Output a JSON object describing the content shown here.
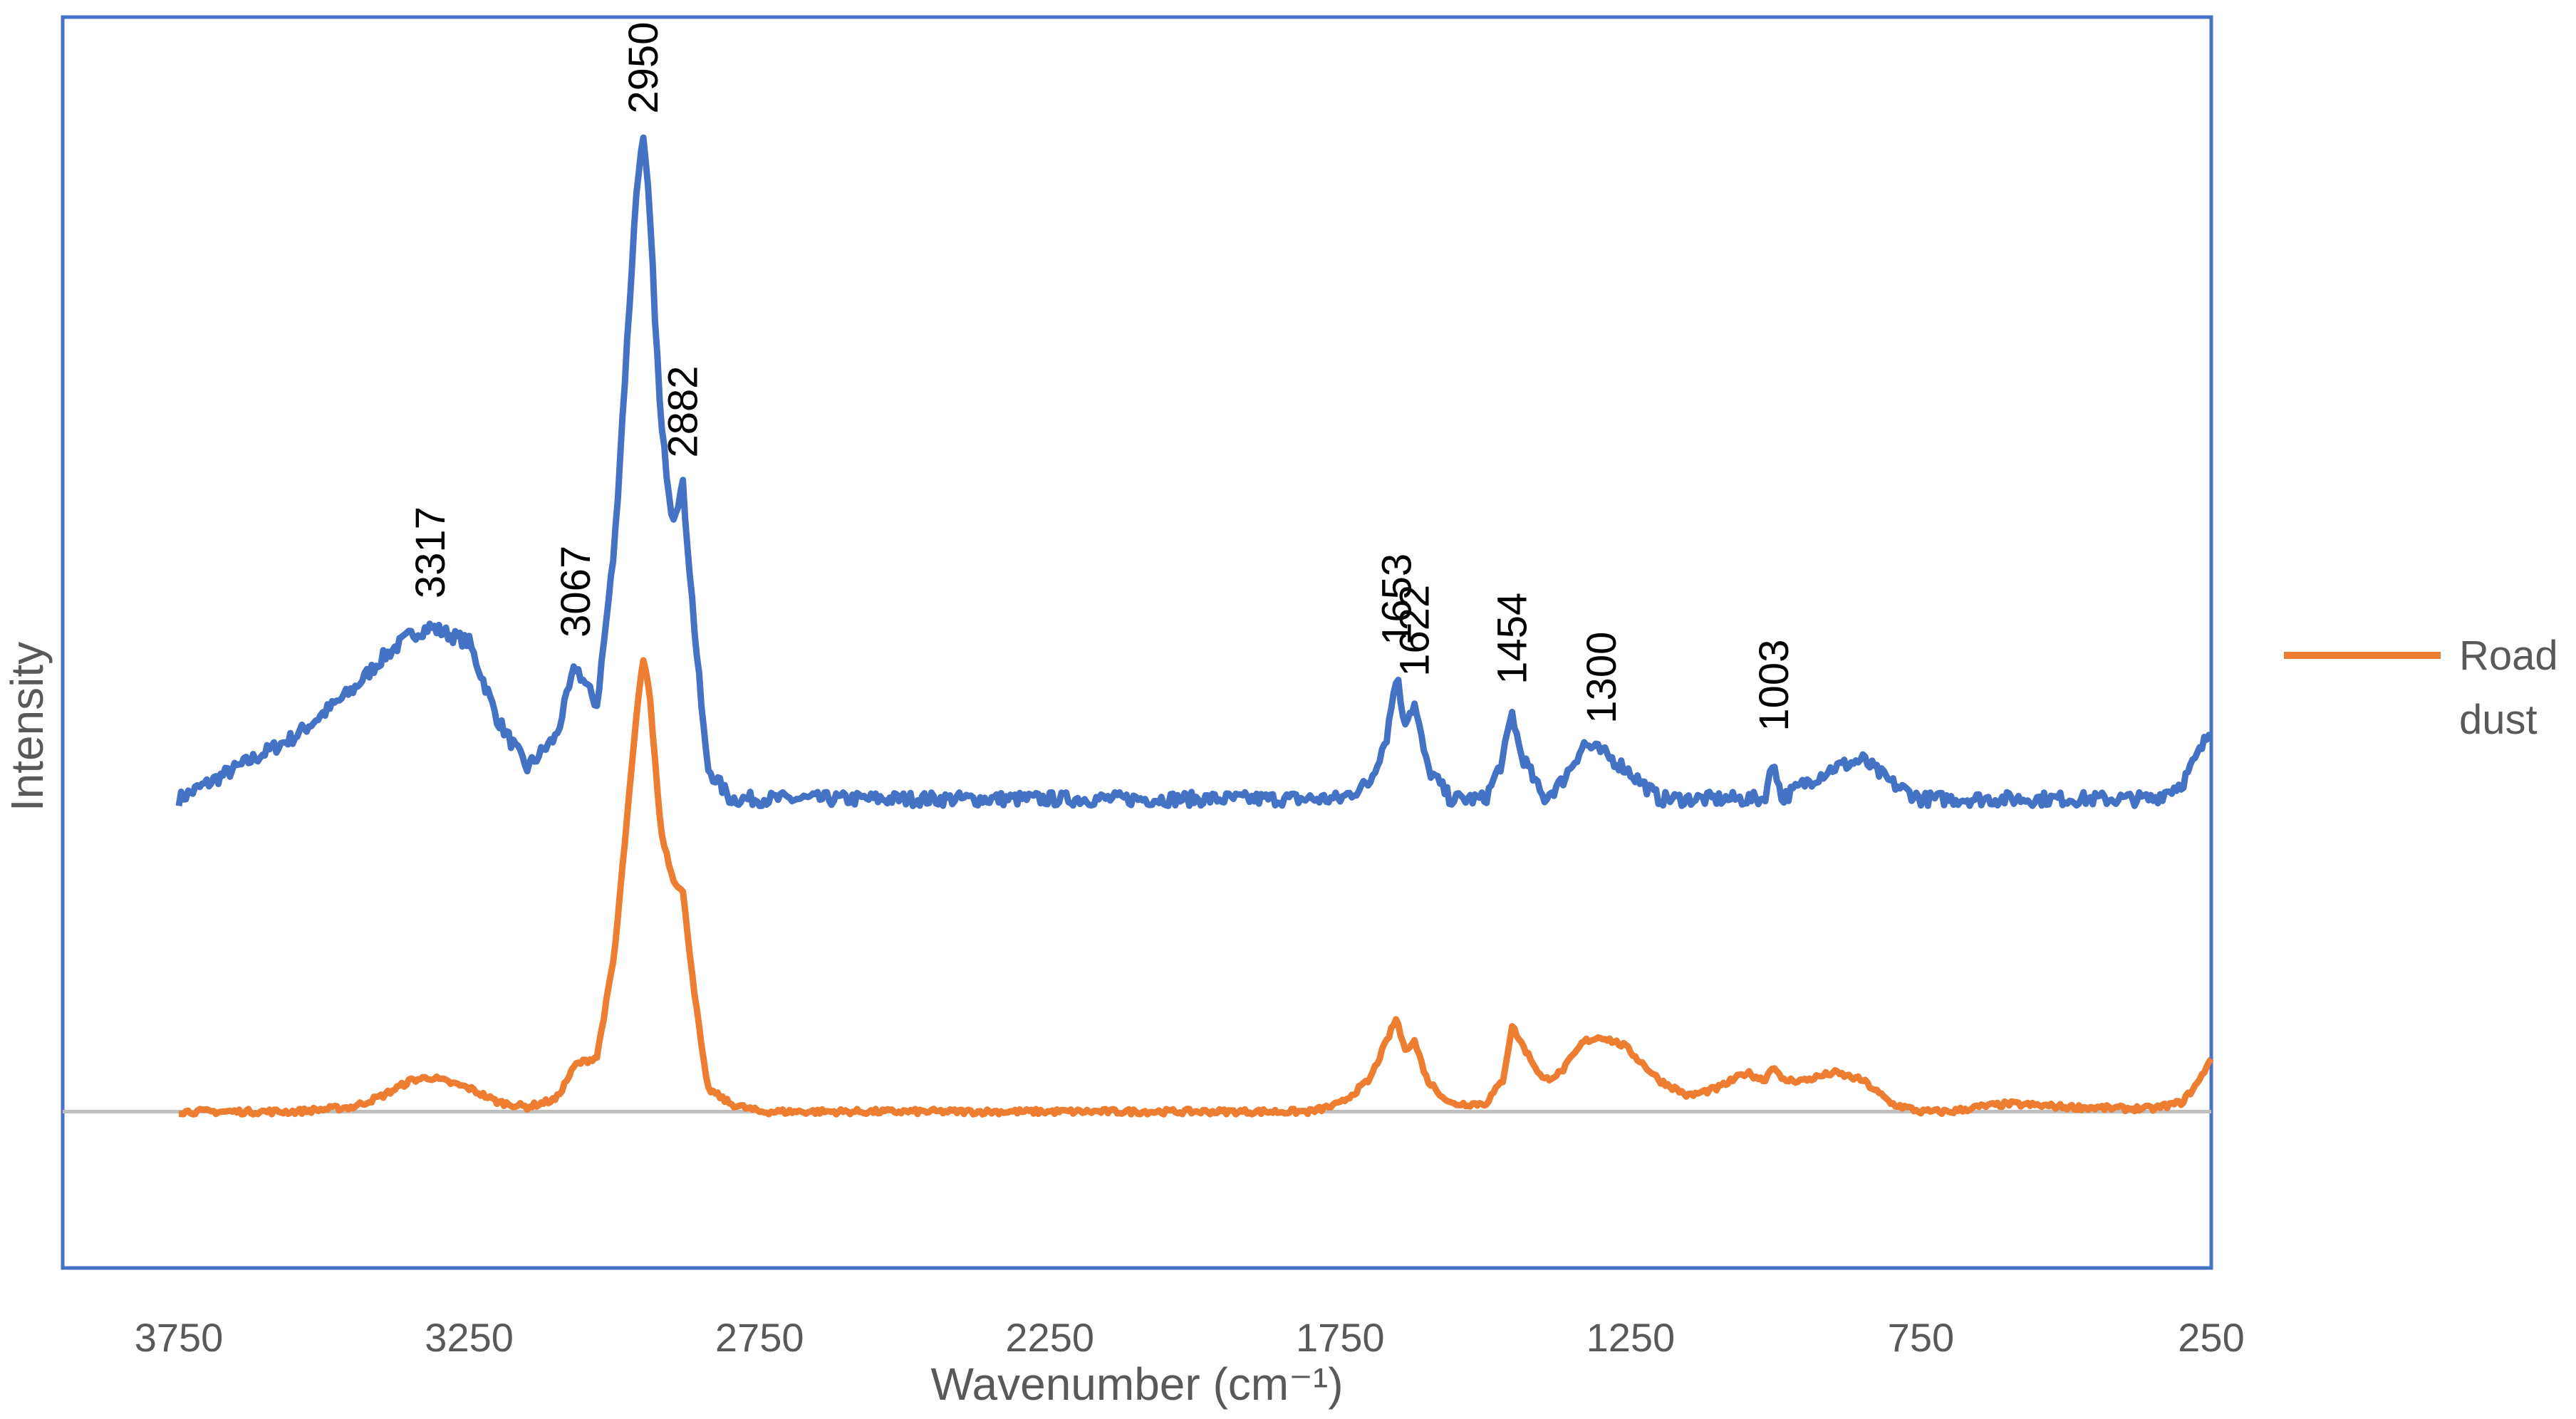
{
  "chart_data": {
    "type": "line",
    "title": "",
    "xlabel": "Wavenumber (cm⁻¹)",
    "ylabel": "Intensity",
    "x_reversed": true,
    "xlim": [
      3950,
      250
    ],
    "ylim": [
      -10,
      70
    ],
    "xticks": [
      3750,
      3250,
      2750,
      2250,
      1750,
      1250,
      750,
      250
    ],
    "grid": false,
    "legend_position": "right",
    "baseline": 0,
    "colors": {
      "frame": "#4472C4",
      "baseline": "#BFBFBF"
    },
    "series": [
      {
        "name": "",
        "color": "#4472C4",
        "x": [
          3750,
          3650,
          3550,
          3450,
          3400,
          3350,
          3317,
          3250,
          3200,
          3150,
          3100,
          3067,
          3030,
          3000,
          2980,
          2960,
          2950,
          2940,
          2920,
          2900,
          2882,
          2860,
          2840,
          2800,
          2750,
          2500,
          2250,
          2000,
          1800,
          1750,
          1700,
          1670,
          1653,
          1640,
          1622,
          1600,
          1560,
          1500,
          1470,
          1454,
          1440,
          1400,
          1370,
          1330,
          1300,
          1260,
          1200,
          1150,
          1100,
          1050,
          1020,
          1003,
          990,
          950,
          900,
          850,
          800,
          750,
          700,
          650,
          600,
          500,
          400,
          350,
          300,
          270,
          250
        ],
        "values": [
          20,
          22,
          24,
          27,
          29,
          30.5,
          31,
          30,
          25,
          22,
          24,
          28.5,
          26,
          36,
          48,
          60,
          62,
          58,
          44,
          38,
          40,
          30,
          22,
          20,
          20,
          20,
          20,
          20,
          20,
          20,
          21,
          24,
          28,
          25,
          26,
          22,
          20,
          20,
          22.5,
          25.5,
          23,
          20,
          21,
          23.5,
          23,
          22,
          20,
          20,
          20,
          20,
          20,
          22.5,
          20,
          21,
          22,
          22.5,
          21,
          20,
          20,
          20,
          20,
          20,
          20,
          20,
          21,
          23,
          24.5
        ]
      },
      {
        "name": "Road dust",
        "color": "#ED7D31",
        "x": [
          3750,
          3650,
          3550,
          3450,
          3400,
          3350,
          3317,
          3250,
          3200,
          3150,
          3100,
          3067,
          3030,
          3000,
          2980,
          2960,
          2950,
          2940,
          2920,
          2900,
          2882,
          2860,
          2840,
          2800,
          2750,
          2500,
          2250,
          2000,
          1800,
          1750,
          1700,
          1670,
          1653,
          1640,
          1622,
          1600,
          1560,
          1500,
          1470,
          1454,
          1440,
          1400,
          1370,
          1330,
          1300,
          1260,
          1200,
          1150,
          1100,
          1050,
          1020,
          1003,
          990,
          950,
          900,
          850,
          800,
          750,
          700,
          650,
          600,
          500,
          400,
          350,
          300,
          270,
          250
        ],
        "values": [
          0,
          0,
          0,
          0.3,
          1,
          2,
          2.2,
          1.5,
          0.6,
          0.3,
          0.8,
          3,
          3.5,
          10,
          18,
          26,
          29,
          27,
          18,
          15,
          14,
          7,
          1.5,
          0.5,
          0,
          0,
          0,
          0,
          0,
          0.5,
          2,
          4.5,
          6,
          4,
          4.5,
          2,
          0.5,
          0.5,
          2,
          5.5,
          4.5,
          2,
          2.5,
          4.5,
          4.8,
          4.2,
          2,
          1,
          1.5,
          2.5,
          2,
          3,
          2,
          2,
          2.5,
          2,
          0.5,
          0,
          0,
          0.3,
          0.5,
          0.3,
          0.2,
          0.2,
          0.6,
          2,
          3.5
        ]
      }
    ],
    "annotations": [
      {
        "label": "3317",
        "x": 3317,
        "y": 31
      },
      {
        "label": "3067",
        "x": 3067,
        "y": 28.5
      },
      {
        "label": "2950",
        "x": 2950,
        "y": 62
      },
      {
        "label": "2882",
        "x": 2882,
        "y": 40
      },
      {
        "label": "1653",
        "x": 1653,
        "y": 28
      },
      {
        "label": "1622",
        "x": 1622,
        "y": 26
      },
      {
        "label": "1454",
        "x": 1454,
        "y": 25.5
      },
      {
        "label": "1300",
        "x": 1300,
        "y": 23
      },
      {
        "label": "1003",
        "x": 1003,
        "y": 22.5
      }
    ]
  }
}
